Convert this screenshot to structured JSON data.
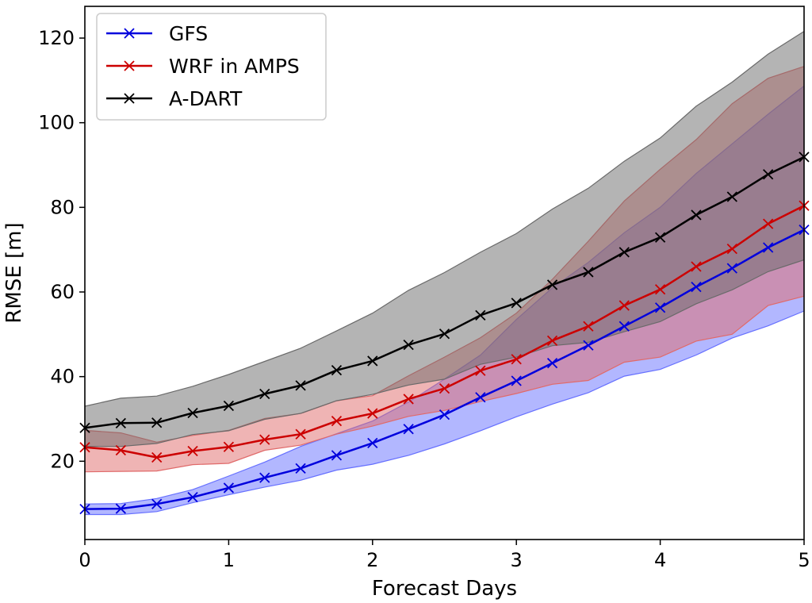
{
  "chart_data": {
    "type": "line",
    "xlabel": "Forecast Days",
    "ylabel": "RMSE [m]",
    "xlim": [
      0,
      5
    ],
    "ylim": [
      1.5,
      127.5
    ],
    "xticks": [
      0,
      1,
      2,
      3,
      4,
      5
    ],
    "yticks": [
      20,
      40,
      60,
      80,
      100,
      120
    ],
    "grid": false,
    "legend_position": "top-left",
    "x": [
      0,
      0.25,
      0.5,
      0.75,
      1,
      1.25,
      1.5,
      1.75,
      2,
      2.25,
      2.5,
      2.75,
      3,
      3.25,
      3.5,
      3.75,
      4,
      4.25,
      4.5,
      4.75,
      5
    ],
    "series": [
      {
        "name": "GFS",
        "color": "#0000dd",
        "fill_color": "#6670ff",
        "values": [
          8.7,
          8.8,
          9.9,
          11.5,
          13.7,
          16.1,
          18.3,
          21.4,
          24.3,
          27.6,
          31.0,
          35.1,
          39.0,
          43.2,
          47.4,
          51.9,
          56.3,
          61.2,
          65.6,
          70.5,
          74.7
        ],
        "lower": [
          7.4,
          7.4,
          8.1,
          10.2,
          12.1,
          13.9,
          15.5,
          17.9,
          19.3,
          21.4,
          24.1,
          27.2,
          30.5,
          33.5,
          36.2,
          40.1,
          41.7,
          45.1,
          49.1,
          52.0,
          55.5
        ],
        "upper": [
          9.9,
          10.0,
          11.2,
          13.3,
          16.5,
          19.8,
          23.5,
          26.5,
          29.5,
          34.0,
          39.4,
          45.1,
          53.5,
          61.0,
          67.0,
          74.0,
          80.0,
          88.0,
          95.0,
          102.0,
          108.7
        ]
      },
      {
        "name": "WRF in AMPS",
        "color": "#cc0000",
        "fill_color": "#e06a6a",
        "values": [
          23.3,
          22.6,
          20.9,
          22.4,
          23.4,
          25.1,
          26.4,
          29.5,
          31.3,
          34.7,
          37.2,
          41.4,
          44.1,
          48.5,
          51.9,
          56.8,
          60.6,
          66.0,
          70.2,
          76.1,
          80.4
        ],
        "lower": [
          17.5,
          17.6,
          17.7,
          19.2,
          19.5,
          22.6,
          23.8,
          26.4,
          28.3,
          30.6,
          32.0,
          34.1,
          36.0,
          38.2,
          39.1,
          43.4,
          44.6,
          48.4,
          50.0,
          56.8,
          59.0
        ],
        "upper": [
          27.3,
          26.7,
          24.5,
          26.1,
          27.3,
          30.1,
          31.3,
          34.3,
          35.5,
          40.2,
          44.6,
          49.2,
          55.0,
          63.0,
          72.0,
          81.5,
          89.0,
          96.0,
          104.5,
          110.5,
          113.3
        ]
      },
      {
        "name": "A-DART",
        "color": "#000000",
        "fill_color": "#6a6a6a",
        "values": [
          27.9,
          29.0,
          29.1,
          31.4,
          33.1,
          35.9,
          37.9,
          41.5,
          43.7,
          47.5,
          50.1,
          54.5,
          57.4,
          61.7,
          64.7,
          69.4,
          72.9,
          78.2,
          82.5,
          87.8,
          91.9
        ],
        "lower": [
          23.5,
          23.5,
          24.2,
          26.3,
          27.2,
          29.9,
          31.3,
          34.3,
          35.8,
          38.0,
          39.4,
          42.9,
          44.6,
          47.3,
          48.1,
          50.6,
          53.0,
          57.2,
          60.5,
          64.8,
          67.6
        ],
        "upper": [
          33.0,
          34.9,
          35.4,
          37.7,
          40.5,
          43.6,
          46.7,
          50.8,
          55.0,
          60.4,
          64.6,
          69.4,
          73.8,
          79.6,
          84.5,
          90.9,
          96.4,
          103.9,
          109.6,
          116.2,
          121.6
        ]
      }
    ]
  }
}
